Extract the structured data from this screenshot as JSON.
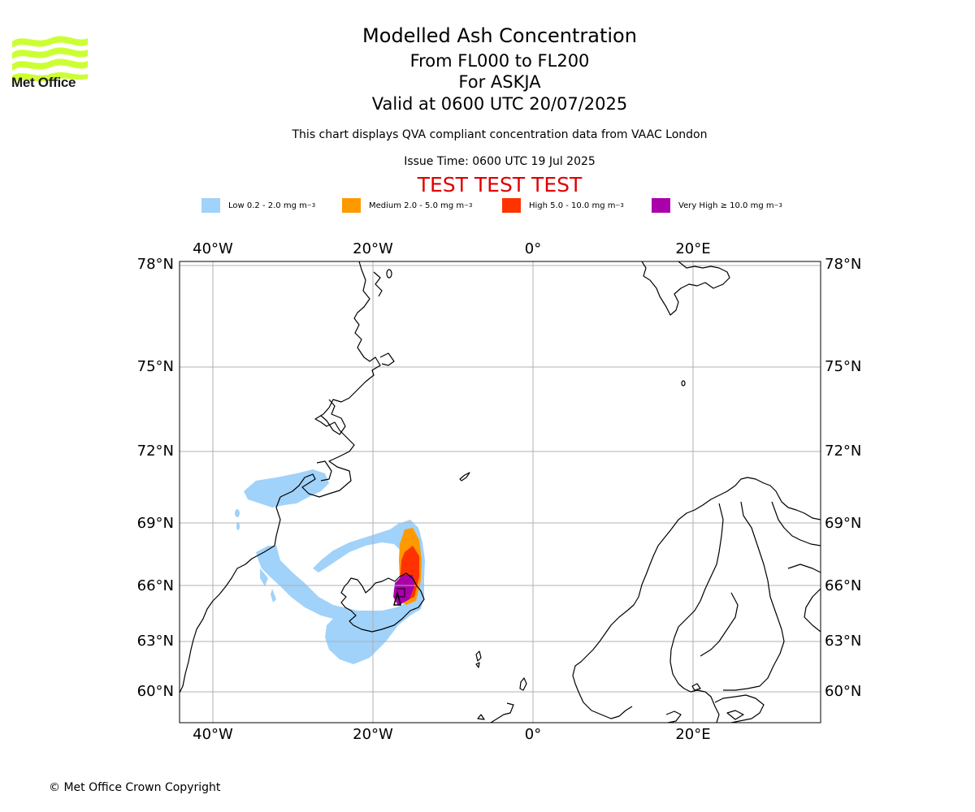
{
  "brand": {
    "name": "Met Office",
    "logo_color": "#ccff33",
    "logo_icon": "met-office-wave-logo"
  },
  "header": {
    "title": "Modelled Ash Concentration",
    "levels": "From FL000 to FL200",
    "volcano": "For ASKJA",
    "valid": "Valid at 0600 UTC 20/07/2025",
    "description": "This chart displays QVA compliant concentration data from VAAC London",
    "issue_time": "Issue Time: 0600 UTC 19 Jul 2025",
    "test_banner": "TEST TEST TEST"
  },
  "legend": [
    {
      "label": "Low 0.2 - 2.0 mg m",
      "sup": "−3",
      "color": "#a0d2fa"
    },
    {
      "label": "Medium 2.0 - 5.0 mg m",
      "sup": "−3",
      "color": "#ff9900"
    },
    {
      "label": "High 5.0 - 10.0 mg m",
      "sup": "−3",
      "color": "#ff3300"
    },
    {
      "label": "Very High  ≥  10.0 mg m",
      "sup": "−3",
      "color": "#aa00aa"
    }
  ],
  "map": {
    "lon_labels": [
      "40°W",
      "20°W",
      "0°",
      "20°E"
    ],
    "lat_labels": [
      "78°N",
      "75°N",
      "72°N",
      "69°N",
      "66°N",
      "63°N",
      "60°N"
    ],
    "grid": true
  },
  "footer": {
    "copyright": "© Met Office Crown Copyright"
  }
}
